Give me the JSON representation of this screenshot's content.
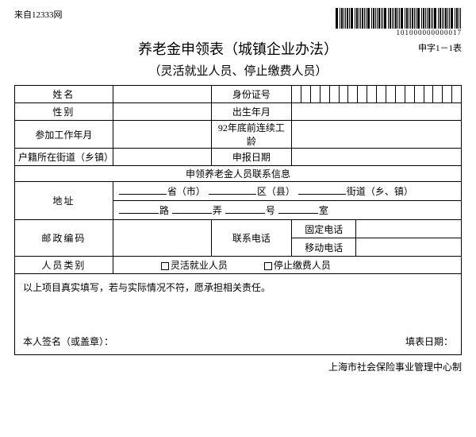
{
  "source": "来自12333网",
  "barcode_number": "101000000000017",
  "form_code": "申字1－1表",
  "title": "养老金申领表（城镇企业办法）",
  "subtitle": "（灵活就业人员、停止缴费人员）",
  "labels": {
    "name": "姓名",
    "id_no": "身份证号",
    "gender": "性别",
    "birth": "出生年月",
    "work_start": "参加工作年月",
    "pre92": "92年底前连续工龄",
    "hukou": "户籍所在街道（乡镇）",
    "apply_date": "申报日期",
    "contact_hdr": "申领养老金人员联系信息",
    "address": "地址",
    "addr_a": "省（市）",
    "addr_b": "区（县）",
    "addr_c": "街道（乡、镇）",
    "addr_d": "路",
    "addr_e": "弄",
    "addr_f": "号",
    "addr_g": "室",
    "postcode": "邮政编码",
    "tel": "联系电话",
    "tel_fixed": "固定电话",
    "tel_mobile": "移动电话",
    "ptype": "人员类别",
    "ptype_a": "灵活就业人员",
    "ptype_b": "停止缴费人员"
  },
  "declaration": "以上项目真实填写，若与实际情况不符，愿承担相关责任。",
  "sig_label": "本人签名（或盖章）：",
  "fill_date_label": "填表日期：",
  "footer": "上海市社会保险事业管理中心制"
}
